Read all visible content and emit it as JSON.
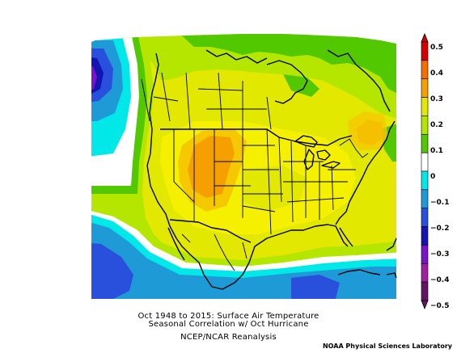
{
  "figure": {
    "title_line1": "Oct 1948 to 2015: Surface Air Temperature",
    "title_line2": "Seasonal Correlation w/ Oct Hurricane",
    "subtitle": "NCEP/NCAR Reanalysis",
    "credit": "NOAA Physical Sciences Laboratory"
  },
  "colorbar": {
    "labels": [
      "0.5",
      "0.4",
      "0.3",
      "0.2",
      "0.1",
      "0",
      "−0.1",
      "−0.2",
      "−0.3",
      "−0.4",
      "−0.5"
    ],
    "colors": [
      "#d40000",
      "#f56e00",
      "#f5a000",
      "#e2e800",
      "#b4e600",
      "#52c800",
      "#ffffff",
      "#00e8e8",
      "#1e9bd7",
      "#2850dc",
      "#1414b4",
      "#7814c8",
      "#a01ea0",
      "#641464"
    ]
  },
  "map_colors": {
    "deep_purple": "#7814c8",
    "dark_blue": "#1414b4",
    "blue": "#2850dc",
    "mid_blue": "#1e9bd7",
    "cyan": "#00e8e8",
    "white": "#ffffff",
    "green": "#52c800",
    "light_green": "#b4e600",
    "yellow_green": "#e2e800",
    "yellow": "#f5f000",
    "gold": "#f5c800",
    "orange": "#f5a000",
    "dark_orange": "#f07800"
  }
}
